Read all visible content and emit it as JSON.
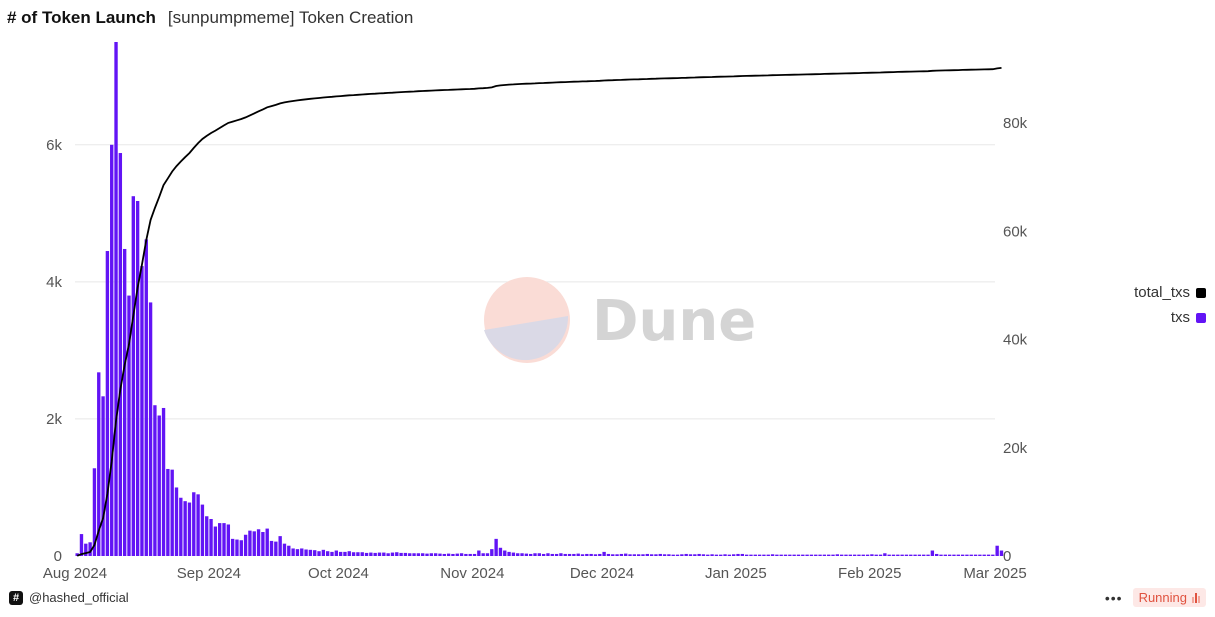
{
  "header": {
    "title": "# of Token Launch",
    "subtitle": "[sunpumpmeme] Token Creation"
  },
  "watermark": {
    "text": "Dune"
  },
  "footer": {
    "author_icon": "#",
    "author": "@hashed_official",
    "menu_label": "•••",
    "status": "Running"
  },
  "legend": [
    {
      "name": "total_txs",
      "color": "#000000"
    },
    {
      "name": "txs",
      "color": "#6214f5"
    }
  ],
  "chart_data": {
    "type": "bar",
    "x_start": "2024-07-31",
    "x_end": "2025-03-01",
    "x_ticks": [
      {
        "date": "2024-07-31",
        "label": "Aug 2024"
      },
      {
        "date": "2024-08-31",
        "label": "Sep 2024"
      },
      {
        "date": "2024-09-30",
        "label": "Oct 2024"
      },
      {
        "date": "2024-10-31",
        "label": "Nov 2024"
      },
      {
        "date": "2024-11-30",
        "label": "Dec 2024"
      },
      {
        "date": "2024-12-31",
        "label": "Jan 2025"
      },
      {
        "date": "2025-01-31",
        "label": "Feb 2025"
      },
      {
        "date": "2025-03-01",
        "label": "Mar 2025"
      }
    ],
    "y_left": {
      "ticks": [
        0,
        2000,
        4000,
        6000
      ],
      "labels": [
        "0",
        "2k",
        "4k",
        "6k"
      ],
      "ylim": [
        0,
        7500
      ]
    },
    "y_right": {
      "ticks": [
        0,
        20000,
        40000,
        60000,
        80000
      ],
      "labels": [
        "0",
        "20k",
        "40k",
        "60k",
        "80k"
      ],
      "ylim": [
        0,
        95000
      ]
    },
    "grid": true,
    "legend_position": "right",
    "series": [
      {
        "name": "txs",
        "type": "bar",
        "axis": "left",
        "color": "#6214f5",
        "values": [
          40,
          320,
          180,
          200,
          1280,
          2680,
          2330,
          4450,
          6000,
          7500,
          5880,
          4480,
          3800,
          5250,
          5180,
          4230,
          4620,
          3700,
          2200,
          2050,
          2160,
          1270,
          1260,
          1000,
          850,
          800,
          780,
          930,
          900,
          750,
          580,
          540,
          430,
          480,
          480,
          460,
          250,
          240,
          230,
          310,
          370,
          360,
          390,
          350,
          400,
          220,
          210,
          290,
          180,
          150,
          110,
          100,
          110,
          95,
          90,
          85,
          70,
          90,
          70,
          60,
          80,
          60,
          60,
          70,
          55,
          55,
          55,
          45,
          50,
          45,
          50,
          50,
          40,
          50,
          55,
          45,
          45,
          40,
          40,
          40,
          40,
          35,
          40,
          40,
          35,
          30,
          35,
          30,
          35,
          40,
          30,
          30,
          30,
          80,
          40,
          40,
          100,
          250,
          120,
          80,
          60,
          50,
          40,
          40,
          35,
          30,
          40,
          40,
          30,
          40,
          30,
          30,
          40,
          30,
          30,
          30,
          35,
          25,
          30,
          30,
          25,
          30,
          60,
          30,
          25,
          25,
          30,
          35,
          25,
          25,
          25,
          25,
          30,
          25,
          25,
          30,
          25,
          25,
          20,
          20,
          25,
          30,
          25,
          25,
          30,
          25,
          20,
          25,
          20,
          20,
          25,
          20,
          25,
          30,
          30,
          20,
          20,
          20,
          20,
          20,
          20,
          25,
          20,
          20,
          20,
          20,
          20,
          20,
          20,
          20,
          20,
          20,
          20,
          20,
          20,
          20,
          25,
          20,
          20,
          20,
          20,
          20,
          20,
          20,
          25,
          20,
          20,
          40,
          20,
          20,
          20,
          20,
          20,
          20,
          20,
          20,
          20,
          20,
          80,
          30,
          20,
          20,
          20,
          20,
          20,
          20,
          20,
          20,
          20,
          20,
          20,
          20,
          20,
          150,
          80
        ]
      },
      {
        "name": "total_txs",
        "type": "line",
        "axis": "right",
        "color": "#000000"
      }
    ]
  }
}
